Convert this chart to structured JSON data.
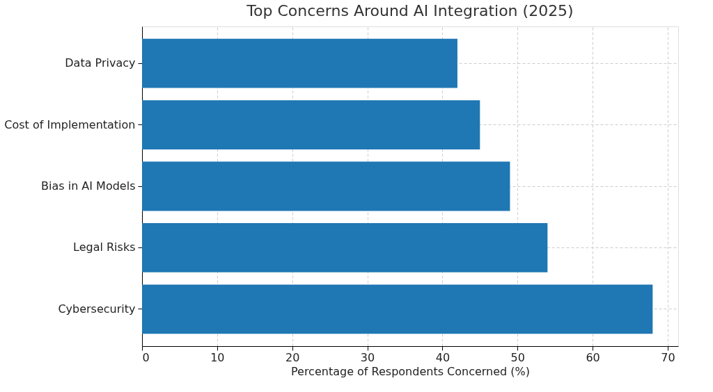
{
  "chart_data": {
    "type": "bar",
    "orientation": "horizontal",
    "title": "Top Concerns Around AI Integration (2025)",
    "categories": [
      "Data Privacy",
      "Cost of Implementation",
      "Bias in AI Models",
      "Legal Risks",
      "Cybersecurity"
    ],
    "values": [
      42,
      45,
      49,
      54,
      68
    ],
    "color": "#1f77b4",
    "xlabel": "Percentage of Respondents Concerned (%)",
    "xlim": [
      0,
      71.4
    ],
    "xticks": [
      0,
      10,
      20,
      30,
      40,
      50,
      60,
      70
    ],
    "grid": true
  }
}
